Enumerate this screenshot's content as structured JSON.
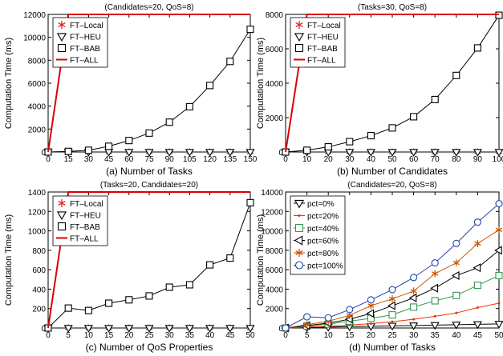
{
  "chart_data": [
    {
      "type": "line",
      "title": "(Candidates=20, QoS=8)",
      "xlabel": "(a) Number of Tasks",
      "ylabel": "Computation Time (ms)",
      "x": [
        0,
        15,
        30,
        45,
        60,
        75,
        90,
        105,
        120,
        135,
        150
      ],
      "xticks": [
        "0",
        "15",
        "30",
        "45",
        "60",
        "75",
        "90",
        "105",
        "120",
        "135",
        "150"
      ],
      "xlim": [
        0,
        150
      ],
      "ylim": [
        0,
        12000
      ],
      "yticks": [
        "0",
        "2000",
        "4000",
        "6000",
        "8000",
        "10000",
        "12000"
      ],
      "grid": false,
      "legend_position": "top-left",
      "series": [
        {
          "name": "FT–Local",
          "marker": "star",
          "color": "#dd2222",
          "values": [
            0,
            0,
            0,
            0,
            0,
            0,
            0,
            0,
            0,
            0,
            0
          ]
        },
        {
          "name": "FT–HEU",
          "marker": "triangle-down",
          "color": "#000000",
          "values": [
            0,
            0,
            0,
            0,
            0,
            0,
            0,
            0,
            0,
            0,
            0
          ]
        },
        {
          "name": "FT–BAB",
          "marker": "square",
          "color": "#000000",
          "values": [
            0,
            50,
            150,
            500,
            1000,
            1650,
            2600,
            3950,
            5800,
            7900,
            10700
          ]
        },
        {
          "name": "FT–ALL",
          "marker": "none",
          "color": "#dd0000",
          "values": [
            0,
            12000,
            12000,
            12000,
            12000,
            12000,
            12000,
            12000,
            12000,
            12000,
            12000
          ]
        }
      ]
    },
    {
      "type": "line",
      "title": "(Tasks=30, QoS=8)",
      "xlabel": "(b) Number of Candidates",
      "ylabel": "Computation Time (ms)",
      "x": [
        0,
        10,
        20,
        30,
        40,
        50,
        60,
        70,
        80,
        90,
        100
      ],
      "xticks": [
        "0",
        "10",
        "20",
        "30",
        "40",
        "50",
        "60",
        "70",
        "80",
        "90",
        "100"
      ],
      "xlim": [
        0,
        100
      ],
      "ylim": [
        0,
        8000
      ],
      "yticks": [
        "0",
        "2000",
        "4000",
        "6000",
        "8000"
      ],
      "grid": false,
      "legend_position": "top-left",
      "series": [
        {
          "name": "FT–Local",
          "marker": "star",
          "color": "#dd2222",
          "values": [
            0,
            0,
            0,
            0,
            0,
            0,
            0,
            0,
            0,
            0,
            0
          ]
        },
        {
          "name": "FT–HEU",
          "marker": "triangle-down",
          "color": "#000000",
          "values": [
            0,
            0,
            0,
            0,
            0,
            0,
            0,
            0,
            0,
            0,
            0
          ]
        },
        {
          "name": "FT–BAB",
          "marker": "square",
          "color": "#000000",
          "values": [
            0,
            100,
            300,
            600,
            950,
            1400,
            2050,
            3050,
            4450,
            6050,
            7950
          ]
        },
        {
          "name": "FT–ALL",
          "marker": "none",
          "color": "#dd0000",
          "values": [
            0,
            8000,
            8000,
            8000,
            8000,
            8000,
            8000,
            8000,
            8000,
            8000,
            8000
          ]
        }
      ]
    },
    {
      "type": "line",
      "title": "(Tasks=20, Candidates=20)",
      "xlabel": "(c) Number of QoS Properties",
      "ylabel": "Computation Time (ms)",
      "x": [
        0,
        5,
        10,
        15,
        20,
        25,
        30,
        35,
        40,
        45,
        50
      ],
      "xticks": [
        "0",
        "5",
        "10",
        "15",
        "20",
        "25",
        "30",
        "35",
        "40",
        "45",
        "50"
      ],
      "xlim": [
        0,
        50
      ],
      "ylim": [
        0,
        1400
      ],
      "yticks": [
        "0",
        "200",
        "400",
        "600",
        "800",
        "1000",
        "1200",
        "1400"
      ],
      "grid": false,
      "legend_position": "top-left",
      "series": [
        {
          "name": "FT–Local",
          "marker": "star",
          "color": "#dd2222",
          "values": [
            0,
            0,
            0,
            0,
            0,
            0,
            0,
            0,
            0,
            0,
            0
          ]
        },
        {
          "name": "FT–HEU",
          "marker": "triangle-down",
          "color": "#000000",
          "values": [
            0,
            0,
            0,
            0,
            0,
            0,
            0,
            0,
            0,
            0,
            0
          ]
        },
        {
          "name": "FT–BAB",
          "marker": "square",
          "color": "#000000",
          "values": [
            0,
            205,
            180,
            255,
            290,
            330,
            420,
            445,
            650,
            720,
            1290
          ]
        },
        {
          "name": "FT–ALL",
          "marker": "none",
          "color": "#dd0000",
          "values": [
            0,
            1400,
            1400,
            1400,
            1400,
            1400,
            1400,
            1400,
            1400,
            1400,
            1400
          ]
        }
      ]
    },
    {
      "type": "line",
      "title": "(Candidates=20, QoS=8)",
      "xlabel": "(d) Number of Tasks",
      "ylabel": "Computation Time (ms)",
      "x": [
        0,
        5,
        10,
        15,
        20,
        25,
        30,
        35,
        40,
        45,
        50
      ],
      "xticks": [
        "0",
        "5",
        "10",
        "15",
        "20",
        "25",
        "30",
        "35",
        "40",
        "45",
        "50"
      ],
      "xlim": [
        0,
        50
      ],
      "ylim": [
        0,
        14000
      ],
      "yticks": [
        "0",
        "2000",
        "4000",
        "6000",
        "8000",
        "10000",
        "12000",
        "14000"
      ],
      "grid": false,
      "legend_position": "top-left",
      "series": [
        {
          "name": "pct=0%",
          "marker": "triangle-down",
          "color": "#000000",
          "values": [
            0,
            40,
            90,
            140,
            180,
            220,
            260,
            300,
            340,
            380,
            420
          ]
        },
        {
          "name": "pct=20%",
          "marker": "dot",
          "color": "#ee3300",
          "values": [
            0,
            100,
            180,
            300,
            450,
            650,
            900,
            1200,
            1550,
            2100,
            2550
          ]
        },
        {
          "name": "pct=40%",
          "marker": "square",
          "color": "#339955",
          "values": [
            0,
            200,
            400,
            700,
            1000,
            1350,
            2150,
            2800,
            3350,
            4400,
            5400
          ]
        },
        {
          "name": "pct=60%",
          "marker": "triangle-left",
          "color": "#000000",
          "values": [
            0,
            250,
            500,
            900,
            1500,
            2300,
            3100,
            4100,
            5400,
            6200,
            8000
          ]
        },
        {
          "name": "pct=80%",
          "marker": "star",
          "color": "#cc5500",
          "values": [
            0,
            350,
            700,
            1300,
            2300,
            3000,
            3800,
            5600,
            6700,
            8700,
            10100
          ]
        },
        {
          "name": "pct=100%",
          "marker": "circle",
          "color": "#2244aa",
          "values": [
            0,
            1150,
            1050,
            1900,
            2900,
            3950,
            5200,
            6700,
            8700,
            10900,
            12800
          ]
        }
      ]
    }
  ]
}
